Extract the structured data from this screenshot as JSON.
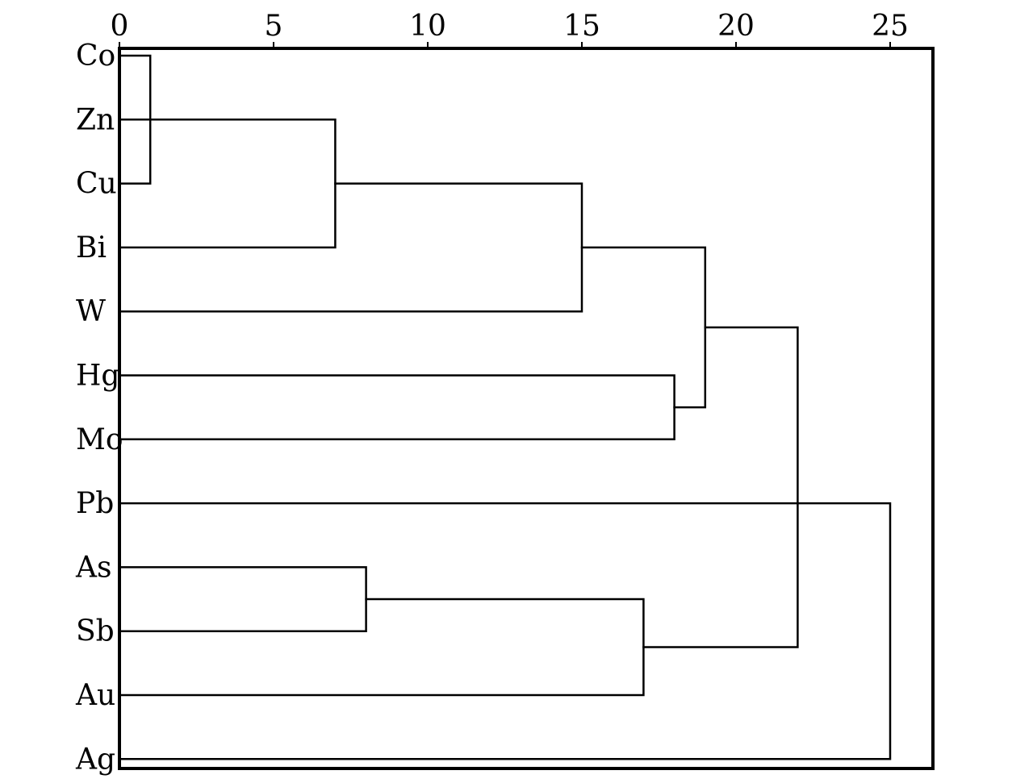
{
  "chart_data": {
    "type": "dendrogram",
    "title": "",
    "xlabel": "",
    "ylabel": "",
    "xlim": [
      0,
      26.4
    ],
    "x_ticks": [
      "0",
      "5",
      "10",
      "15",
      "20",
      "25"
    ],
    "tick_values": [
      0,
      5,
      10,
      15,
      20,
      25
    ],
    "leaves": [
      "Co",
      "Zn",
      "Cu",
      "Bi",
      "W",
      "Hg",
      "Mo",
      "Pb",
      "As",
      "Sb",
      "Au",
      "Ag"
    ],
    "merges": [
      {
        "a": "Co",
        "b": "Cu",
        "height": 1
      },
      {
        "a": "Co+Cu",
        "b": "Zn",
        "height": 7
      },
      {
        "a": "Co+Cu+Zn",
        "b": "Bi",
        "height": 7
      },
      {
        "a": "Co+Zn+Cu+Bi",
        "b": "W",
        "height": 15
      },
      {
        "a": "Hg",
        "b": "Mo",
        "height": 18
      },
      {
        "a": "Co-W",
        "b": "Hg+Mo",
        "height": 19
      },
      {
        "a": "As",
        "b": "Sb",
        "height": 8
      },
      {
        "a": "As+Sb",
        "b": "Au",
        "height": 17
      },
      {
        "a": "Co-Mo",
        "b": "As+Sb+Au",
        "height": 22
      },
      {
        "a": "Pb",
        "b": "Ag",
        "height": 25
      }
    ],
    "colors": {
      "line": "#000000",
      "background": "#ffffff"
    }
  }
}
